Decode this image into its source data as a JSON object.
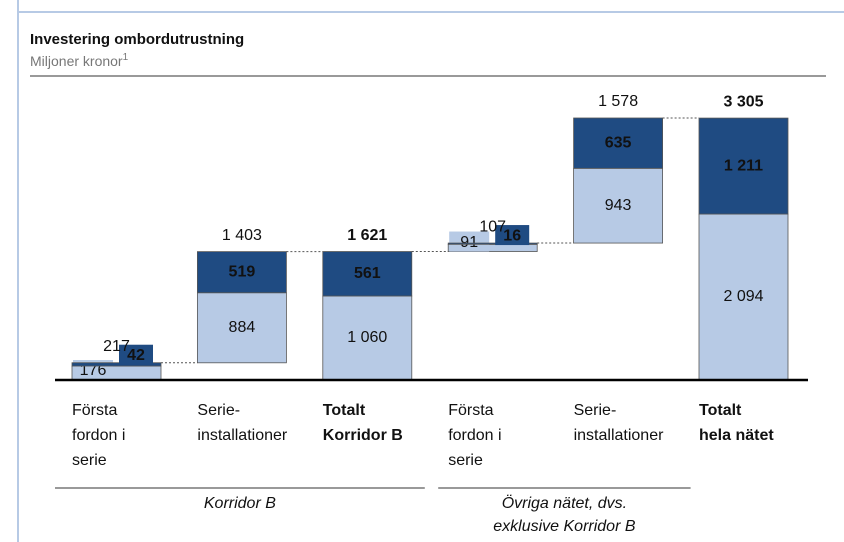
{
  "chart_data": {
    "type": "waterfall",
    "title": "Investering ombordutrustning",
    "subtitle": "Miljoner kronor",
    "subtitle_footnote": "1",
    "categories": [
      [
        "Första",
        "fordon i",
        "serie"
      ],
      [
        "Serie-",
        "installationer"
      ],
      [
        "Totalt",
        "Korridor B"
      ],
      [
        "Första",
        "fordon i",
        "serie"
      ],
      [
        "Serie-",
        "installationer"
      ],
      [
        "Totalt",
        "hela nätet"
      ]
    ],
    "measure": [
      "relative",
      "relative",
      "total",
      "relative",
      "relative",
      "total"
    ],
    "series": [
      {
        "color": "#b7cae5",
        "values": [
          176,
          884,
          1060,
          91,
          943,
          2094
        ],
        "value_labels": [
          "176",
          "884",
          "1 060",
          "91",
          "943",
          "2 094"
        ]
      },
      {
        "color": "#1f4b82",
        "values": [
          42,
          519,
          561,
          16,
          635,
          1211
        ],
        "value_labels": [
          "42",
          "519",
          "561",
          "16",
          "635",
          "1 211"
        ]
      }
    ],
    "totals": [
      217,
      1403,
      1621,
      107,
      1578,
      3305
    ],
    "totals_labels": [
      "217",
      "1 403",
      "1 621",
      "107",
      "1 578",
      "3 305"
    ],
    "groups": [
      {
        "label": [
          "Korridor B"
        ],
        "from": 0,
        "to": 2
      },
      {
        "label": [
          "Övriga nätet, dvs.",
          "exklusive Korridor B"
        ],
        "from": 3,
        "to": 4
      }
    ]
  }
}
